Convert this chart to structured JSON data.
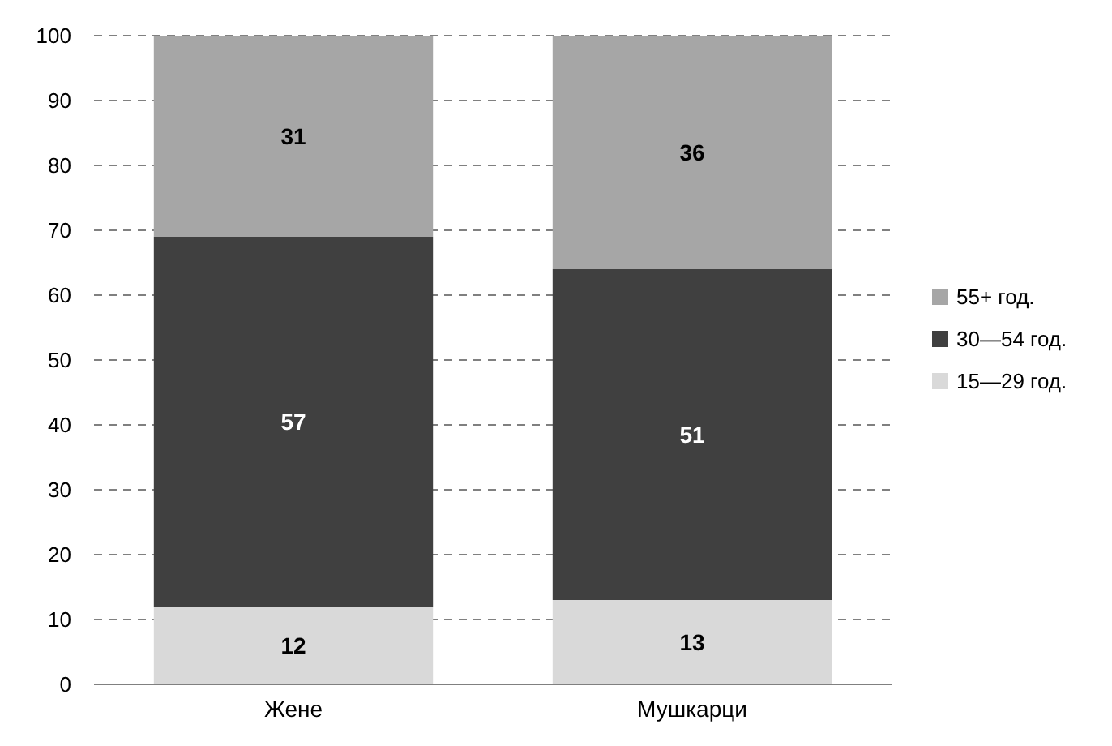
{
  "chart_data": {
    "type": "bar",
    "stacked": true,
    "categories": [
      "Жене",
      "Мушкарци"
    ],
    "series": [
      {
        "name": "15—29 год.",
        "color": "#d9d9d9",
        "values": [
          12,
          13
        ]
      },
      {
        "name": "30—54 год.",
        "color": "#404040",
        "values": [
          57,
          51
        ]
      },
      {
        "name": "55+ год.",
        "color": "#a6a6a6",
        "values": [
          31,
          36
        ]
      }
    ],
    "ylim": [
      0,
      100
    ],
    "yticks": [
      0,
      10,
      20,
      30,
      40,
      50,
      60,
      70,
      80,
      90,
      100
    ],
    "grid": "y",
    "legend": "right",
    "data_labels": true
  }
}
